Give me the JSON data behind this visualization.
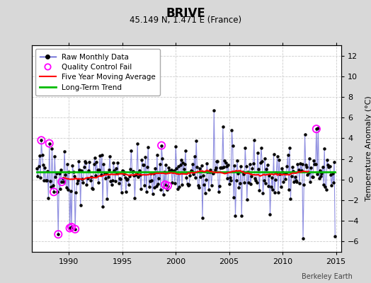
{
  "title": "BRIVE",
  "subtitle": "45.149 N, 1.471 E (France)",
  "ylabel": "Temperature Anomaly (°C)",
  "watermark": "Berkeley Earth",
  "ylim": [
    -7,
    13
  ],
  "yticks": [
    -6,
    -4,
    -2,
    0,
    2,
    4,
    6,
    8,
    10,
    12
  ],
  "xlim": [
    1986.5,
    2015.5
  ],
  "xticks": [
    1990,
    1995,
    2000,
    2005,
    2010,
    2015
  ],
  "bg_color": "#d8d8d8",
  "plot_bg_color": "#ffffff",
  "raw_line_color": "#4444cc",
  "raw_line_alpha": 0.6,
  "raw_dot_color": "#000000",
  "ma_color": "#ff0000",
  "trend_color": "#00bb00",
  "qc_fail_color": "#ff00ff",
  "seed": 42,
  "start_year": 1987,
  "end_year": 2014,
  "long_term_trend_val": 0.75
}
